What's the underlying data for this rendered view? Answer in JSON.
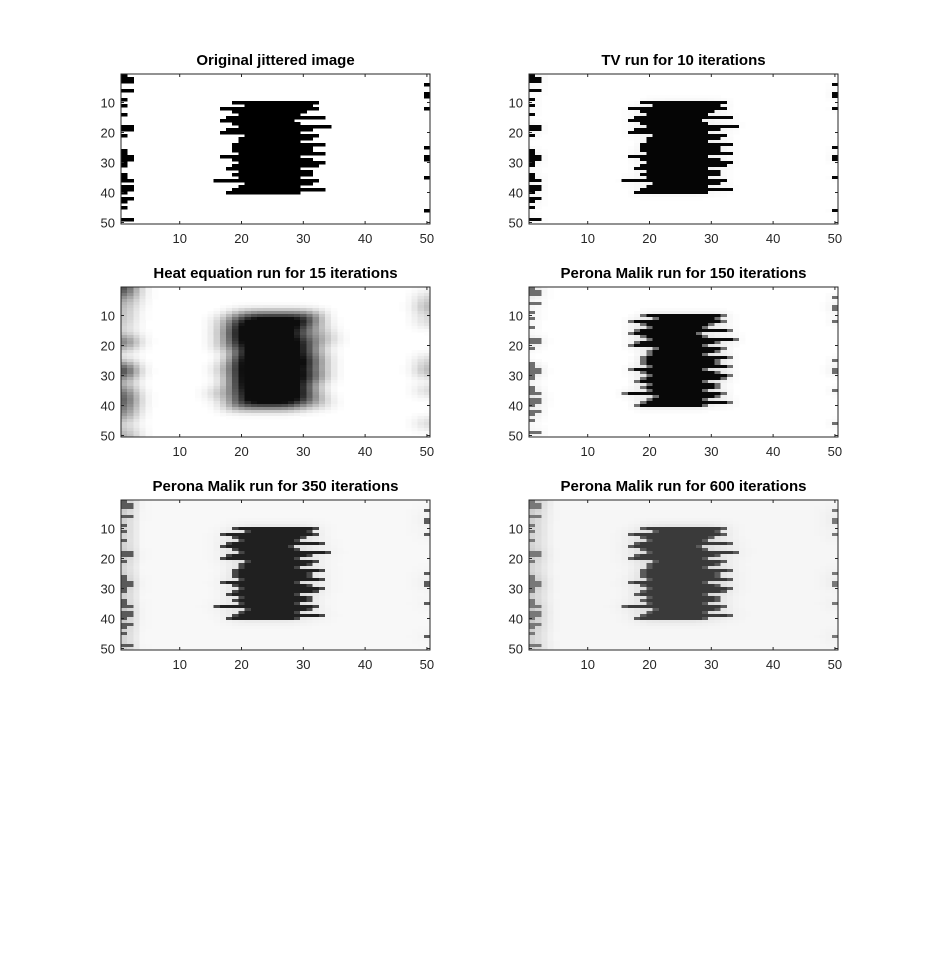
{
  "chart_data": [
    {
      "type": "heatmap",
      "title": "Original jittered image",
      "variant": "original",
      "xlim": [
        0.5,
        50.5
      ],
      "ylim": [
        0.5,
        50.5
      ],
      "y_direction": "reversed",
      "xticks": [
        10,
        20,
        30,
        40,
        50
      ],
      "yticks": [
        10,
        20,
        30,
        40,
        50
      ],
      "colormap": "gray",
      "grid": false
    },
    {
      "type": "heatmap",
      "title": "TV run for 10 iterations",
      "variant": "tv",
      "xlim": [
        0.5,
        50.5
      ],
      "ylim": [
        0.5,
        50.5
      ],
      "y_direction": "reversed",
      "xticks": [
        10,
        20,
        30,
        40,
        50
      ],
      "yticks": [
        10,
        20,
        30,
        40,
        50
      ],
      "colormap": "gray",
      "grid": false
    },
    {
      "type": "heatmap",
      "title": "Heat equation run for 15 iterations",
      "variant": "heat",
      "xlim": [
        0.5,
        50.5
      ],
      "ylim": [
        0.5,
        50.5
      ],
      "y_direction": "reversed",
      "xticks": [
        10,
        20,
        30,
        40,
        50
      ],
      "yticks": [
        10,
        20,
        30,
        40,
        50
      ],
      "colormap": "gray",
      "grid": false
    },
    {
      "type": "heatmap",
      "title": "Perona Malik run for 150 iterations",
      "variant": "pm150",
      "xlim": [
        0.5,
        50.5
      ],
      "ylim": [
        0.5,
        50.5
      ],
      "y_direction": "reversed",
      "xticks": [
        10,
        20,
        30,
        40,
        50
      ],
      "yticks": [
        10,
        20,
        30,
        40,
        50
      ],
      "colormap": "gray",
      "grid": false
    },
    {
      "type": "heatmap",
      "title": "Perona Malik run for 350 iterations",
      "variant": "pm350",
      "xlim": [
        0.5,
        50.5
      ],
      "ylim": [
        0.5,
        50.5
      ],
      "y_direction": "reversed",
      "xticks": [
        10,
        20,
        30,
        40,
        50
      ],
      "yticks": [
        10,
        20,
        30,
        40,
        50
      ],
      "colormap": "gray",
      "grid": false
    },
    {
      "type": "heatmap",
      "title": "Perona Malik run for 600 iterations",
      "variant": "pm600",
      "xlim": [
        0.5,
        50.5
      ],
      "ylim": [
        0.5,
        50.5
      ],
      "y_direction": "reversed",
      "xticks": [
        10,
        20,
        30,
        40,
        50
      ],
      "yticks": [
        10,
        20,
        30,
        40,
        50
      ],
      "colormap": "gray",
      "grid": false
    }
  ]
}
